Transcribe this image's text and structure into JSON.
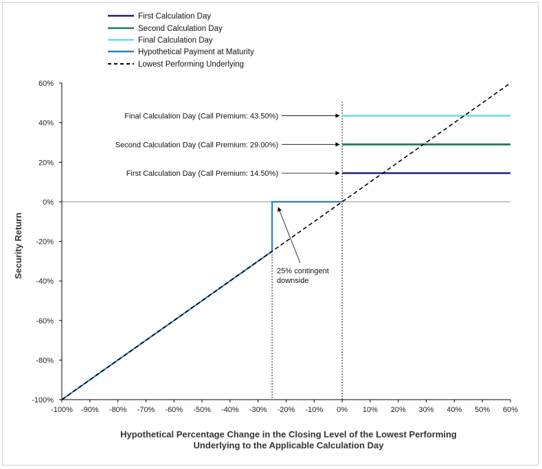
{
  "chart_data": {
    "type": "line",
    "title": "",
    "xlabel_lines": [
      "Hypothetical Percentage Change in the Closing Level of the Lowest Performing",
      "Underlying to the Applicable Calculation Day"
    ],
    "ylabel": "Security Return",
    "xlim": [
      -100,
      60
    ],
    "ylim": [
      -100,
      60
    ],
    "x_ticks": [
      -100,
      -90,
      -80,
      -70,
      -60,
      -50,
      -40,
      -30,
      -20,
      -10,
      0,
      10,
      20,
      30,
      40,
      50,
      60
    ],
    "x_tick_labels": [
      "-100%",
      "-90%",
      "-80%",
      "-70%",
      "-60%",
      "-50%",
      "-40%",
      "-30%",
      "-20%",
      "-10%",
      "0%",
      "10%",
      "20%",
      "30%",
      "40%",
      "50%",
      "60%"
    ],
    "y_ticks": [
      -100,
      -80,
      -60,
      -40,
      -20,
      0,
      20,
      40,
      60
    ],
    "y_tick_labels": [
      "-100%",
      "-80%",
      "-60%",
      "-40%",
      "-20%",
      "0%",
      "20%",
      "40%",
      "60%"
    ],
    "legend_position": "top-left",
    "series": [
      {
        "name": "First Calculation Day",
        "color": "#1a1f6e",
        "dash": "solid",
        "points": [
          [
            0,
            14.5
          ],
          [
            60,
            14.5
          ]
        ]
      },
      {
        "name": "Second Calculation Day",
        "color": "#1f7a5c",
        "dash": "solid",
        "points": [
          [
            0,
            29.0
          ],
          [
            60,
            29.0
          ]
        ]
      },
      {
        "name": "Final Calculation Day",
        "color": "#5ee0e6",
        "dash": "solid",
        "points": [
          [
            0,
            43.5
          ],
          [
            60,
            43.5
          ]
        ]
      },
      {
        "name": "Hypothetical Payment at Maturity",
        "color": "#2e7fc0",
        "dash": "solid",
        "points": [
          [
            -100,
            -100
          ],
          [
            -25,
            -25
          ],
          [
            -25,
            0
          ],
          [
            0,
            0
          ]
        ]
      },
      {
        "name": "Lowest Performing Underlying",
        "color": "#000000",
        "dash": "dashed",
        "points": [
          [
            -100,
            -100
          ],
          [
            60,
            60
          ]
        ]
      }
    ],
    "reference_lines": [
      {
        "axis": "x",
        "value": -25,
        "style": "dotted"
      },
      {
        "axis": "x",
        "value": 0,
        "style": "dotted"
      },
      {
        "axis": "y",
        "value": 0,
        "style": "solid"
      }
    ],
    "annotations": [
      {
        "text": "Final Calculation Day (Call Premium: 43.50%)",
        "x": 0,
        "y": 43.5
      },
      {
        "text": "Second Calculation Day (Call Premium: 29.00%)",
        "x": 0,
        "y": 29.0
      },
      {
        "text": "First Calculation Day (Call Premium: 14.50%)",
        "x": 0,
        "y": 14.5
      },
      {
        "text_lines": [
          "25% contingent",
          "downside"
        ],
        "x": -22,
        "y": -25
      }
    ]
  },
  "colors": {
    "zero_line": "#b5b5b5",
    "axis": "#000000"
  }
}
